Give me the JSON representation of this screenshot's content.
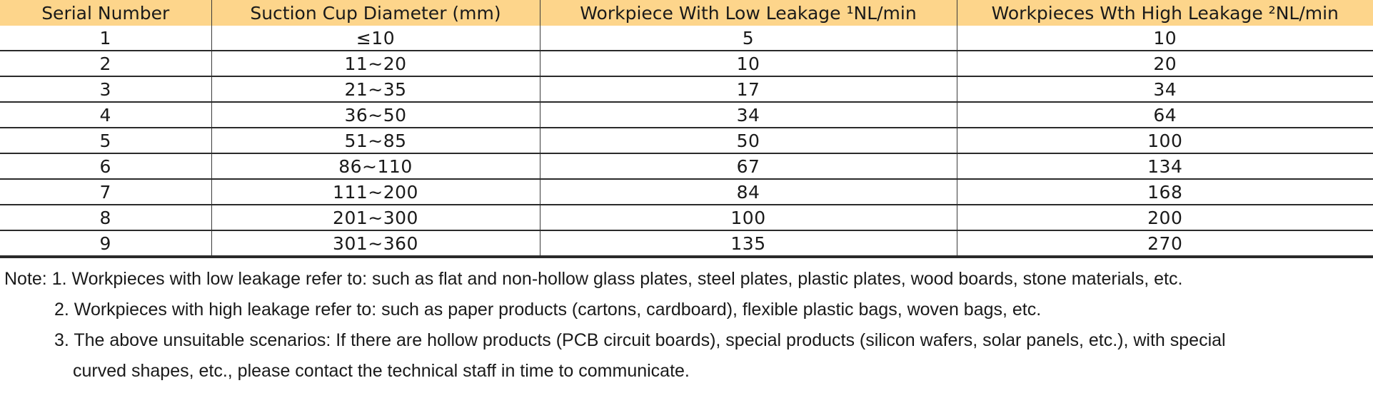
{
  "table": {
    "headers": [
      "Serial Number",
      "Suction Cup Diameter (mm)",
      "Workpiece With Low Leakage ¹NL/min",
      "Workpieces Wth High Leakage ²NL/min"
    ],
    "rows": [
      [
        "1",
        "≤10",
        "5",
        "10"
      ],
      [
        "2",
        "11∼20",
        "10",
        "20"
      ],
      [
        "3",
        "21∼35",
        "17",
        "34"
      ],
      [
        "4",
        "36∼50",
        "34",
        "64"
      ],
      [
        "5",
        "51∼85",
        "50",
        "100"
      ],
      [
        "6",
        "86∼110",
        "67",
        "134"
      ],
      [
        "7",
        "111∼200",
        "84",
        "168"
      ],
      [
        "8",
        "201∼300",
        "100",
        "200"
      ],
      [
        "9",
        "301∼360",
        "135",
        "270"
      ]
    ]
  },
  "notes": {
    "line1": "Note: 1. Workpieces with low leakage refer to: such as flat and non-hollow glass plates, steel plates, plastic plates, wood boards, stone materials, etc.",
    "line2": "2. Workpieces with high leakage refer to: such as paper products (cartons, cardboard), flexible plastic bags, woven bags, etc.",
    "line3": "3. The above unsuitable scenarios: If there are hollow products (PCB circuit boards), special products (silicon wafers, solar panels, etc.), with special",
    "line4": "curved shapes, etc., please contact the technical staff in time to communicate."
  },
  "colors": {
    "header_background": "#fdd58b",
    "rule": "#2a2a2a"
  }
}
